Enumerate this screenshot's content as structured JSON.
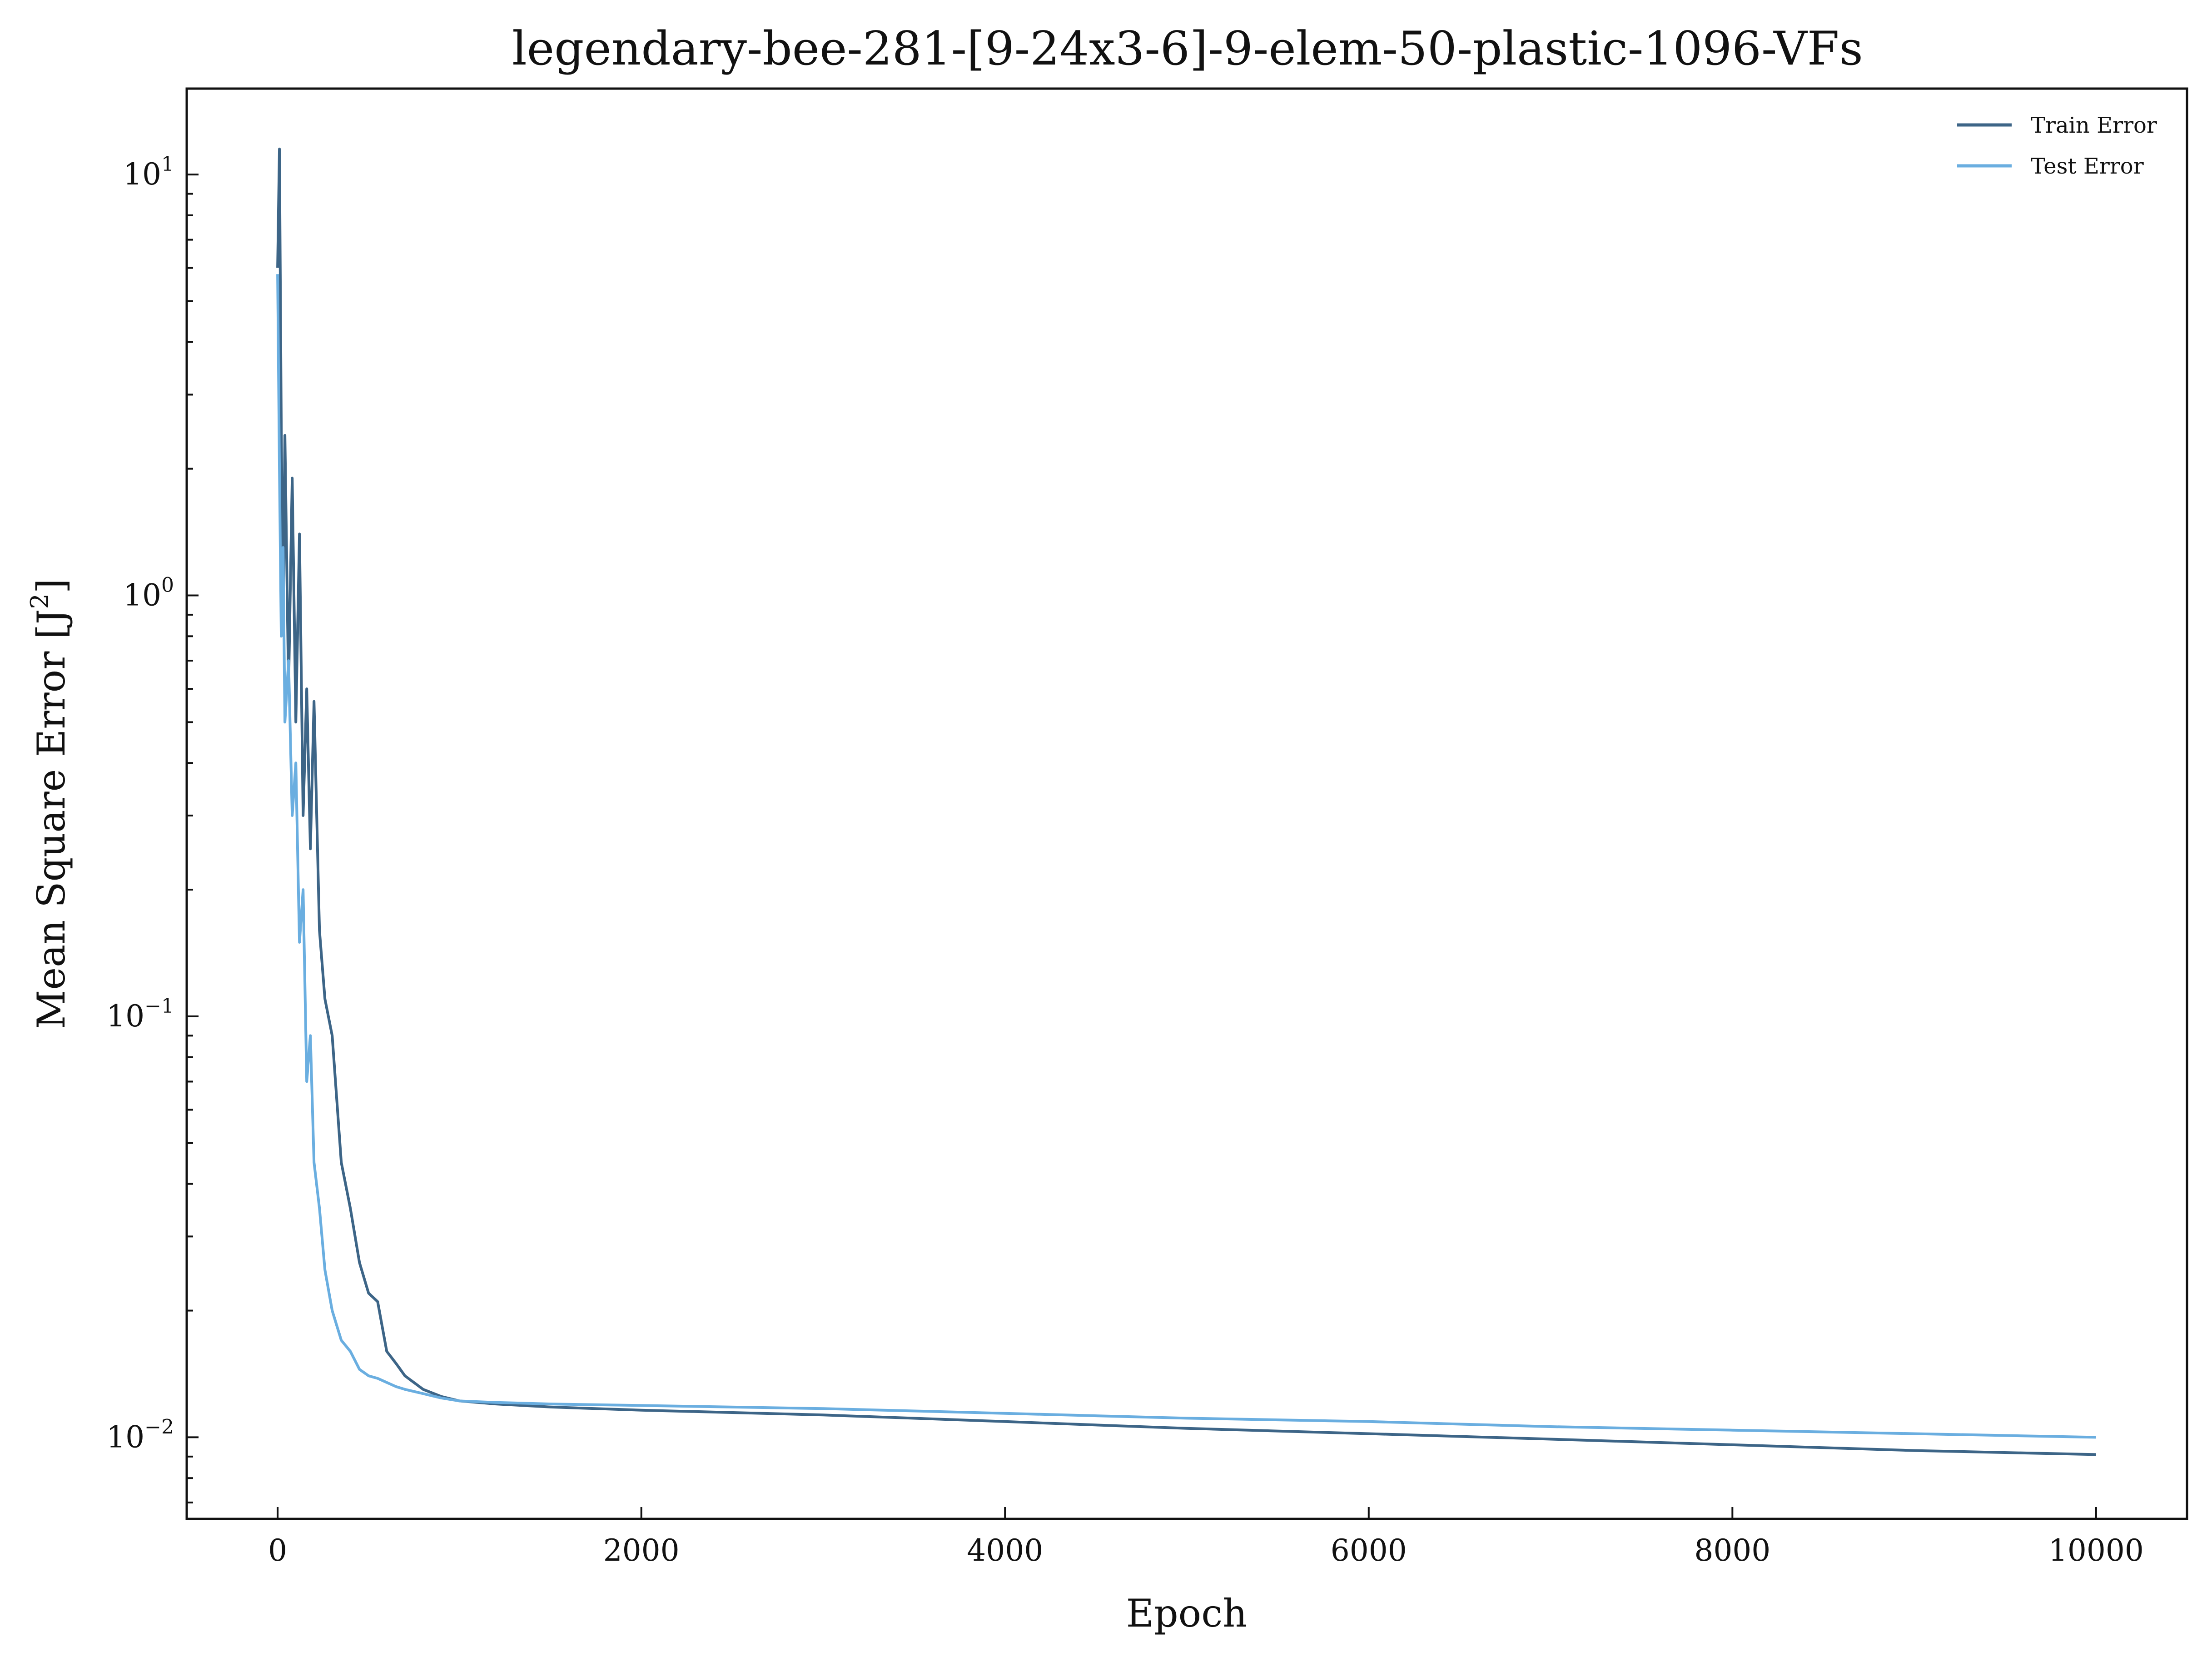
{
  "chart_data": {
    "type": "line",
    "title": "legendary-bee-281-[9-24x3-6]-9-elem-50-plastic-1096-VFs",
    "xlabel": "Epoch",
    "ylabel": "Mean Square Error [J",
    "ylabel_sup": "2",
    "ylabel_suffix": "]",
    "xlim": [
      -500,
      10500
    ],
    "ylim": [
      0.0064,
      16
    ],
    "yscale": "log",
    "grid": false,
    "legend_position": "top-right",
    "x_ticks": [
      {
        "value": 0,
        "label": "0"
      },
      {
        "value": 2000,
        "label": "2000"
      },
      {
        "value": 4000,
        "label": "4000"
      },
      {
        "value": 6000,
        "label": "6000"
      },
      {
        "value": 8000,
        "label": "8000"
      },
      {
        "value": 10000,
        "label": "10000"
      }
    ],
    "y_ticks": [
      {
        "value": 10,
        "base": "10",
        "exp": "1"
      },
      {
        "value": 1,
        "base": "10",
        "exp": "0"
      },
      {
        "value": 0.1,
        "base": "10",
        "exp": "−1"
      },
      {
        "value": 0.01,
        "base": "10",
        "exp": "−2"
      }
    ],
    "series": [
      {
        "name": "Train Error",
        "color": "#3d6587",
        "x": [
          0,
          10,
          20,
          30,
          40,
          60,
          80,
          100,
          120,
          140,
          160,
          180,
          200,
          230,
          260,
          300,
          350,
          400,
          450,
          500,
          550,
          600,
          650,
          700,
          800,
          900,
          1000,
          1200,
          1500,
          2000,
          3000,
          4000,
          5000,
          6000,
          7000,
          8000,
          9000,
          10000
        ],
        "y": [
          6.0,
          11.5,
          2.5,
          0.9,
          2.4,
          0.6,
          1.9,
          0.5,
          1.4,
          0.3,
          0.6,
          0.25,
          0.56,
          0.16,
          0.11,
          0.09,
          0.045,
          0.035,
          0.026,
          0.022,
          0.021,
          0.016,
          0.015,
          0.014,
          0.013,
          0.0125,
          0.0122,
          0.012,
          0.0118,
          0.0116,
          0.0113,
          0.0109,
          0.0105,
          0.0102,
          0.0099,
          0.0096,
          0.0093,
          0.0091
        ]
      },
      {
        "name": "Test Error",
        "color": "#6aaee0",
        "x": [
          0,
          10,
          20,
          30,
          40,
          60,
          80,
          100,
          120,
          140,
          160,
          180,
          200,
          230,
          260,
          300,
          350,
          400,
          450,
          500,
          550,
          600,
          650,
          700,
          800,
          900,
          1000,
          1200,
          1500,
          2000,
          3000,
          4000,
          5000,
          6000,
          7000,
          8000,
          9000,
          10000
        ],
        "y": [
          5.8,
          2.0,
          0.8,
          1.3,
          0.5,
          0.7,
          0.3,
          0.4,
          0.15,
          0.2,
          0.07,
          0.09,
          0.045,
          0.035,
          0.025,
          0.02,
          0.017,
          0.016,
          0.0145,
          0.014,
          0.0138,
          0.0135,
          0.0132,
          0.013,
          0.0127,
          0.0124,
          0.0122,
          0.0121,
          0.012,
          0.0119,
          0.0117,
          0.0114,
          0.0111,
          0.0109,
          0.0106,
          0.0104,
          0.0102,
          0.01
        ]
      }
    ]
  }
}
